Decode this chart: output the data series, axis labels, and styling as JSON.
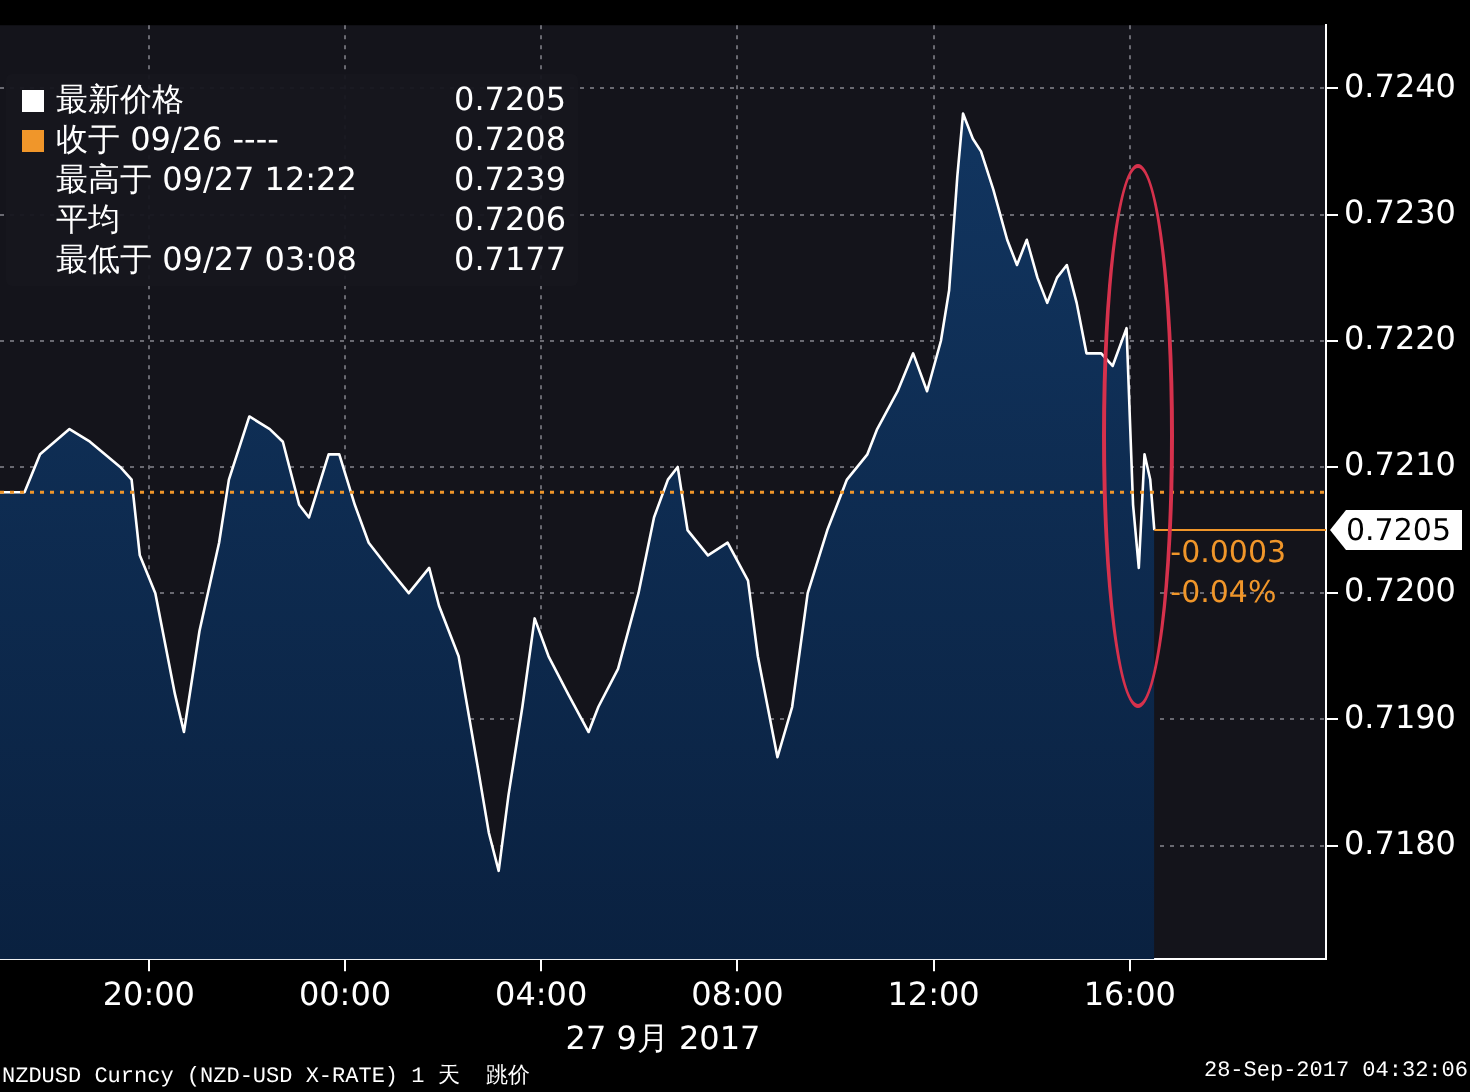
{
  "chart_data": {
    "type": "area",
    "xlabel": "27 9月 2017",
    "x": [
      "2017-09-26T16:58",
      "2017-09-26T17:28",
      "2017-09-26T17:47",
      "2017-09-26T18:23",
      "2017-09-26T18:48",
      "2017-09-26T19:25",
      "2017-09-26T19:39",
      "2017-09-26T19:49",
      "2017-09-26T20:08",
      "2017-09-26T20:32",
      "2017-09-26T20:43",
      "2017-09-26T21:02",
      "2017-09-26T21:26",
      "2017-09-26T21:38",
      "2017-09-26T22:03",
      "2017-09-26T22:28",
      "2017-09-26T22:44",
      "2017-09-26T23:04",
      "2017-09-26T23:16",
      "2017-09-26T23:40",
      "2017-09-26T23:53",
      "2017-09-27T00:12",
      "2017-09-27T00:29",
      "2017-09-27T00:53",
      "2017-09-27T01:18",
      "2017-09-27T01:43",
      "2017-09-27T01:55",
      "2017-09-27T02:19",
      "2017-09-27T02:43",
      "2017-09-27T02:56",
      "2017-09-27T03:08",
      "2017-09-27T03:20",
      "2017-09-27T03:37",
      "2017-09-27T03:52",
      "2017-09-27T04:09",
      "2017-09-27T04:33",
      "2017-09-27T04:58",
      "2017-09-27T05:10",
      "2017-09-27T05:34",
      "2017-09-27T05:59",
      "2017-09-27T06:18",
      "2017-09-27T06:35",
      "2017-09-27T06:47",
      "2017-09-27T06:59",
      "2017-09-27T07:24",
      "2017-09-27T07:48",
      "2017-09-27T08:13",
      "2017-09-27T08:25",
      "2017-09-27T08:37",
      "2017-09-27T08:49",
      "2017-09-27T09:07",
      "2017-09-27T09:26",
      "2017-09-27T09:50",
      "2017-09-27T10:14",
      "2017-09-27T10:39",
      "2017-09-27T10:51",
      "2017-09-27T11:16",
      "2017-09-27T11:35",
      "2017-09-27T11:52",
      "2017-09-27T12:09",
      "2017-09-27T12:19",
      "2017-09-27T12:29",
      "2017-09-27T12:36",
      "2017-09-27T12:48",
      "2017-09-27T12:58",
      "2017-09-27T13:13",
      "2017-09-27T13:30",
      "2017-09-27T13:42",
      "2017-09-27T13:54",
      "2017-09-27T14:07",
      "2017-09-27T14:19",
      "2017-09-27T14:31",
      "2017-09-27T14:43",
      "2017-09-27T14:55",
      "2017-09-27T15:07",
      "2017-09-27T15:25",
      "2017-09-27T15:39",
      "2017-09-27T15:56",
      "2017-09-27T16:04",
      "2017-09-27T16:11",
      "2017-09-27T16:18",
      "2017-09-27T16:25",
      "2017-09-27T16:30"
    ],
    "series": [
      {
        "name": "最新价格",
        "color": "#ffffff",
        "values": [
          0.7208,
          0.7208,
          0.7211,
          0.7213,
          0.7212,
          0.721,
          0.7209,
          0.7203,
          0.72,
          0.7192,
          0.7189,
          0.7197,
          0.7204,
          0.7209,
          0.7214,
          0.7213,
          0.7212,
          0.7207,
          0.7206,
          0.7211,
          0.7211,
          0.7207,
          0.7204,
          0.7202,
          0.72,
          0.7202,
          0.7199,
          0.7195,
          0.7186,
          0.7181,
          0.7178,
          0.7184,
          0.7191,
          0.7198,
          0.7195,
          0.7192,
          0.7189,
          0.7191,
          0.7194,
          0.72,
          0.7206,
          0.7209,
          0.721,
          0.7205,
          0.7203,
          0.7204,
          0.7201,
          0.7195,
          0.7191,
          0.7187,
          0.7191,
          0.72,
          0.7205,
          0.7209,
          0.7211,
          0.7213,
          0.7216,
          0.7219,
          0.7216,
          0.722,
          0.7224,
          0.7233,
          0.7238,
          0.7236,
          0.7235,
          0.7232,
          0.7228,
          0.7226,
          0.7228,
          0.7225,
          0.7223,
          0.7225,
          0.7226,
          0.7223,
          0.7219,
          0.7219,
          0.7218,
          0.7221,
          0.7207,
          0.7202,
          0.7211,
          0.7209,
          0.7205
        ]
      }
    ],
    "xlim": [
      "2017-09-26T16:58",
      "2017-09-27T20:00"
    ],
    "xticks": [
      {
        "value": "2017-09-26T20:00",
        "label": "20:00"
      },
      {
        "value": "2017-09-27T00:00",
        "label": "00:00"
      },
      {
        "value": "2017-09-27T04:00",
        "label": "04:00"
      },
      {
        "value": "2017-09-27T08:00",
        "label": "08:00"
      },
      {
        "value": "2017-09-27T12:00",
        "label": "12:00"
      },
      {
        "value": "2017-09-27T16:00",
        "label": "16:00"
      }
    ],
    "ylim": [
      0.7171,
      0.7245
    ],
    "yticks": [
      {
        "value": 0.718,
        "label": "0.7180"
      },
      {
        "value": 0.719,
        "label": "0.7190"
      },
      {
        "value": 0.72,
        "label": "0.7200"
      },
      {
        "value": 0.721,
        "label": "0.7210"
      },
      {
        "value": 0.722,
        "label": "0.7220"
      },
      {
        "value": 0.723,
        "label": "0.7230"
      },
      {
        "value": 0.724,
        "label": "0.7240"
      }
    ],
    "grid": true,
    "legend": "top left",
    "ref_lines": [
      {
        "axis": "y",
        "value": 0.7208,
        "label": "收于 09/26 ----",
        "color": "#f0962a",
        "line_style": "dotted"
      }
    ],
    "annotations": [
      "0.7205",
      "0.7208",
      "最高于 09/27 12:22 0.7239",
      "平均 0.7206",
      "最低于 09/27 03:08 0.7177",
      {
        "text": "0.7205",
        "x": "2017-09-27T16:30",
        "y": 0.7205
      },
      "-0.0003",
      "-0.04%",
      "NZDUSD Curncy (NZD-USD X-RATE) 1 天  跳价",
      "28-Sep-2017 04:32:06"
    ]
  }
}
